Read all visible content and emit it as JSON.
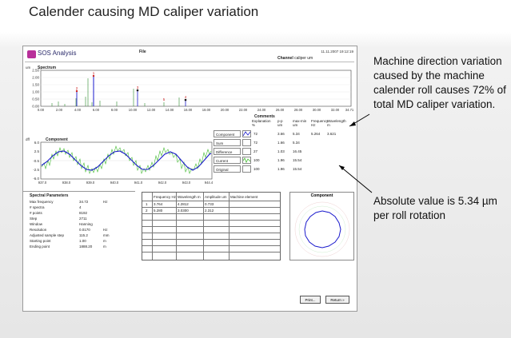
{
  "slide": {
    "title": "Calender causing MD caliper variation",
    "annotation_1": "Machine direction variation caused by the machine calender roll causes 72% of total MD caliper variation.",
    "annotation_2": "Absolute value is 5.34 µm per roll rotation"
  },
  "app": {
    "name": "SOS Analysis",
    "file_label": "File",
    "datetime": "11.11.2007 19:12:19",
    "channel_label": "Channel",
    "channel_value": "caliper",
    "channel_unit": "um"
  },
  "spectrum": {
    "title": "Spectrum",
    "unit": "um",
    "y_ticks": [
      "2.50",
      "2.00",
      "1.50",
      "1.00",
      "0.50",
      "0.00"
    ],
    "x_ticks": [
      "0.00",
      "2.00",
      "4.00",
      "6.00",
      "8.00",
      "10.00",
      "12.00",
      "14.00",
      "16.00",
      "18.00",
      "20.00",
      "22.00",
      "24.00",
      "26.00",
      "28.00",
      "30.00",
      "32.00",
      "34.71"
    ],
    "peak_labels": [
      "1",
      "2",
      "3",
      "4",
      "5"
    ]
  },
  "component_plot": {
    "title": "Component",
    "unit": "dff",
    "y_ticks": [
      "6.0",
      "2.5",
      "-0.5",
      "-2.5",
      "-6.0"
    ],
    "x_ticks": [
      "937.0",
      "938.0",
      "939.0",
      "940.0",
      "941.0",
      "942.0",
      "943.0",
      "944.4"
    ]
  },
  "comments": {
    "title": "Comments",
    "headers": [
      {
        "l1": "Explanation",
        "l2": "%"
      },
      {
        "l1": "p-p",
        "l2": "um"
      },
      {
        "l1": "max-min",
        "l2": "um"
      },
      {
        "l1": "Frequency",
        "l2": "Hz"
      },
      {
        "l1": "Wavelength",
        "l2": "m"
      }
    ],
    "rows": [
      {
        "label": "Component",
        "vals": [
          "72",
          "3.66",
          "5.34",
          "5.264",
          "3.621"
        ]
      },
      {
        "label": "Sum",
        "vals": [
          "72",
          "1.66",
          "5.34",
          "",
          ""
        ]
      },
      {
        "label": "Difference",
        "vals": [
          "27",
          "1.03",
          "16.45",
          "",
          ""
        ]
      },
      {
        "label": "Current",
        "vals": [
          "100",
          "1.96",
          "15.54",
          "",
          ""
        ]
      },
      {
        "label": "Original",
        "vals": [
          "100",
          "1.96",
          "15.54",
          "",
          ""
        ]
      }
    ]
  },
  "params": {
    "title": "Spectral Parameters",
    "rows": [
      {
        "label": "Max frequency",
        "value": "34.72",
        "unit": "Hz"
      },
      {
        "label": "# spectra",
        "value": "4",
        "unit": ""
      },
      {
        "label": "# points",
        "value": "8192",
        "unit": ""
      },
      {
        "label": "Step",
        "value": "2711",
        "unit": ""
      },
      {
        "label": "Window",
        "value": "Hanning",
        "unit": ""
      },
      {
        "label": "Resolution",
        "value": "0.0170",
        "unit": "Hz"
      },
      {
        "label": "Adjusted sample step",
        "value": "115.2",
        "unit": "mm"
      },
      {
        "label": "Starting point",
        "value": "1.00",
        "unit": "m"
      },
      {
        "label": "Ending point",
        "value": "1888.20",
        "unit": "m"
      }
    ]
  },
  "freq_table": {
    "headers": [
      "Frequency Hz",
      "Wavelength m",
      "Amplitude um",
      "Machine element"
    ],
    "rows": [
      {
        "idx": "1",
        "freq": "3.764",
        "wave": "4.2812",
        "amp": "0.733"
      },
      {
        "idx": "2",
        "freq": "5.280",
        "wave": "3.0300",
        "amp": "2.312"
      }
    ]
  },
  "component_panel": {
    "title": "Component"
  },
  "buttons": {
    "print": "Print...",
    "return": "Return »"
  }
}
